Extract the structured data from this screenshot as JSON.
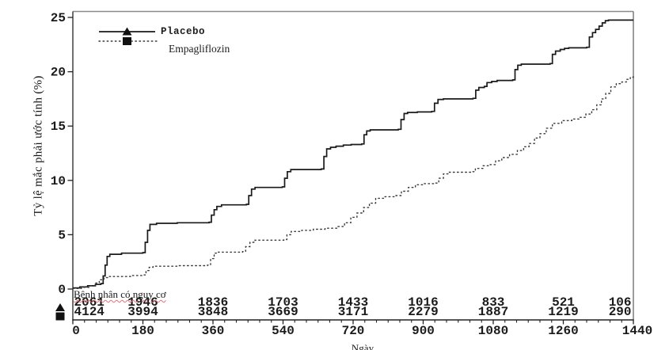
{
  "chart_data": {
    "type": "line",
    "subtype": "kaplan-meier-cumulative-incidence-step",
    "title": "",
    "xlabel": "Ngày",
    "ylabel": "Tỷ lệ mắc phải ước tính (%)",
    "xlim": [
      0,
      1440
    ],
    "ylim": [
      0,
      25
    ],
    "x_ticks": [
      0,
      180,
      360,
      540,
      720,
      900,
      1080,
      1260,
      1440
    ],
    "x_minor_tick_step": 30,
    "y_ticks": [
      0,
      5,
      10,
      15,
      20,
      25
    ],
    "grid": false,
    "legend_position": "top-left-inside",
    "series": [
      {
        "name": "Placebo",
        "line_style": "solid",
        "marker": "triangle",
        "step": true,
        "points": [
          [
            0,
            0.1
          ],
          [
            18,
            0.2
          ],
          [
            38,
            0.3
          ],
          [
            58,
            0.42
          ],
          [
            72,
            0.5
          ],
          [
            78,
            1.2
          ],
          [
            83,
            2.2
          ],
          [
            88,
            3.0
          ],
          [
            95,
            3.2
          ],
          [
            125,
            3.3
          ],
          [
            180,
            3.35
          ],
          [
            186,
            4.3
          ],
          [
            192,
            5.4
          ],
          [
            198,
            5.95
          ],
          [
            215,
            6.05
          ],
          [
            268,
            6.1
          ],
          [
            350,
            6.15
          ],
          [
            356,
            6.8
          ],
          [
            363,
            7.3
          ],
          [
            370,
            7.6
          ],
          [
            382,
            7.75
          ],
          [
            446,
            7.8
          ],
          [
            452,
            8.6
          ],
          [
            459,
            9.2
          ],
          [
            468,
            9.35
          ],
          [
            538,
            9.4
          ],
          [
            544,
            10.2
          ],
          [
            551,
            10.8
          ],
          [
            560,
            11.0
          ],
          [
            638,
            11.05
          ],
          [
            645,
            12.2
          ],
          [
            652,
            12.9
          ],
          [
            662,
            13.05
          ],
          [
            676,
            13.15
          ],
          [
            695,
            13.25
          ],
          [
            715,
            13.3
          ],
          [
            742,
            13.35
          ],
          [
            748,
            14.2
          ],
          [
            755,
            14.55
          ],
          [
            764,
            14.65
          ],
          [
            836,
            14.7
          ],
          [
            843,
            15.6
          ],
          [
            851,
            16.15
          ],
          [
            860,
            16.25
          ],
          [
            885,
            16.3
          ],
          [
            922,
            16.35
          ],
          [
            929,
            17.1
          ],
          [
            938,
            17.45
          ],
          [
            952,
            17.5
          ],
          [
            1028,
            17.55
          ],
          [
            1035,
            18.3
          ],
          [
            1043,
            18.55
          ],
          [
            1057,
            18.65
          ],
          [
            1064,
            19.0
          ],
          [
            1076,
            19.1
          ],
          [
            1090,
            19.2
          ],
          [
            1130,
            19.25
          ],
          [
            1136,
            20.2
          ],
          [
            1143,
            20.6
          ],
          [
            1152,
            20.7
          ],
          [
            1226,
            20.75
          ],
          [
            1232,
            21.6
          ],
          [
            1240,
            21.9
          ],
          [
            1252,
            22.05
          ],
          [
            1263,
            22.15
          ],
          [
            1274,
            22.2
          ],
          [
            1320,
            22.25
          ],
          [
            1327,
            23.2
          ],
          [
            1335,
            23.6
          ],
          [
            1343,
            23.9
          ],
          [
            1352,
            24.2
          ],
          [
            1360,
            24.5
          ],
          [
            1368,
            24.7
          ],
          [
            1376,
            24.75
          ],
          [
            1440,
            24.75
          ]
        ]
      },
      {
        "name": "Empagliflozin",
        "line_style": "dotted",
        "marker": "square",
        "step": true,
        "points": [
          [
            0,
            0.05
          ],
          [
            22,
            0.15
          ],
          [
            42,
            0.3
          ],
          [
            58,
            0.55
          ],
          [
            68,
            0.85
          ],
          [
            80,
            1.05
          ],
          [
            92,
            1.15
          ],
          [
            148,
            1.25
          ],
          [
            182,
            1.3
          ],
          [
            188,
            1.7
          ],
          [
            196,
            2.0
          ],
          [
            206,
            2.1
          ],
          [
            268,
            2.15
          ],
          [
            346,
            2.2
          ],
          [
            354,
            2.8
          ],
          [
            363,
            3.3
          ],
          [
            372,
            3.4
          ],
          [
            436,
            3.45
          ],
          [
            444,
            3.9
          ],
          [
            455,
            4.3
          ],
          [
            468,
            4.5
          ],
          [
            542,
            4.55
          ],
          [
            550,
            5.0
          ],
          [
            561,
            5.3
          ],
          [
            588,
            5.4
          ],
          [
            618,
            5.5
          ],
          [
            648,
            5.6
          ],
          [
            678,
            5.75
          ],
          [
            698,
            6.1
          ],
          [
            714,
            6.6
          ],
          [
            730,
            7.0
          ],
          [
            747,
            7.5
          ],
          [
            762,
            7.9
          ],
          [
            778,
            8.35
          ],
          [
            800,
            8.5
          ],
          [
            828,
            8.6
          ],
          [
            844,
            9.0
          ],
          [
            862,
            9.35
          ],
          [
            880,
            9.6
          ],
          [
            900,
            9.7
          ],
          [
            928,
            9.75
          ],
          [
            940,
            10.2
          ],
          [
            952,
            10.6
          ],
          [
            966,
            10.75
          ],
          [
            1024,
            10.8
          ],
          [
            1034,
            11.1
          ],
          [
            1054,
            11.35
          ],
          [
            1070,
            11.45
          ],
          [
            1086,
            11.8
          ],
          [
            1102,
            12.1
          ],
          [
            1122,
            12.4
          ],
          [
            1142,
            12.75
          ],
          [
            1158,
            13.1
          ],
          [
            1172,
            13.4
          ],
          [
            1186,
            13.9
          ],
          [
            1200,
            14.3
          ],
          [
            1216,
            14.8
          ],
          [
            1232,
            15.25
          ],
          [
            1256,
            15.5
          ],
          [
            1282,
            15.65
          ],
          [
            1302,
            15.8
          ],
          [
            1318,
            16.1
          ],
          [
            1333,
            16.5
          ],
          [
            1346,
            16.95
          ],
          [
            1358,
            17.5
          ],
          [
            1369,
            18.0
          ],
          [
            1382,
            18.6
          ],
          [
            1396,
            18.9
          ],
          [
            1410,
            19.05
          ],
          [
            1422,
            19.3
          ],
          [
            1432,
            19.5
          ],
          [
            1440,
            19.55
          ]
        ]
      }
    ],
    "at_risk": {
      "label": "Bệnh nhân có nguy cơ",
      "days": [
        0,
        180,
        360,
        540,
        720,
        900,
        1080,
        1260,
        1440
      ],
      "rows": [
        {
          "name": "Placebo",
          "marker": "triangle",
          "counts": [
            2061,
            1946,
            1836,
            1703,
            1433,
            1016,
            833,
            521,
            106
          ]
        },
        {
          "name": "Empagliflozin",
          "marker": "square",
          "counts": [
            4124,
            3994,
            3848,
            3669,
            3171,
            2279,
            1887,
            1219,
            290
          ]
        }
      ]
    },
    "colors": {
      "placebo_line": "#1a1a1a",
      "empagliflozin_line": "#3a3a3a",
      "axis": "#222222",
      "frame_top": "#8a8a8a",
      "frame_right": "#666666",
      "text": "#1a1a1a",
      "risk_label_underline": "#e87070",
      "background": "#ffffff"
    }
  }
}
